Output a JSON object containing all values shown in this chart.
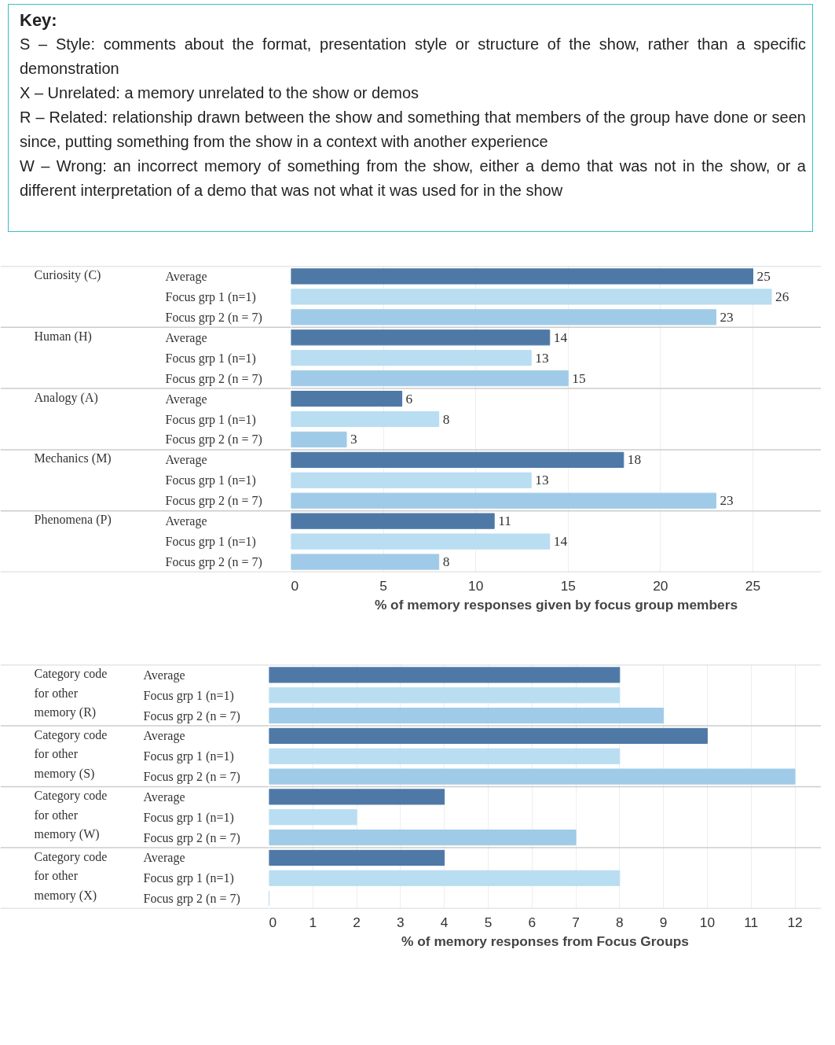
{
  "chart_data": [
    {
      "type": "other",
      "title": "Key:",
      "annotations": [
        "S – Style: comments about the format, presentation style or structure of the show, rather than a specific demonstration",
        "X – Unrelated: a memory unrelated to the show or demos",
        "R – Related: relationship drawn between the show and something that members of the group have done or seen since, putting something from the show in a context with another experience",
        "W – Wrong: an incorrect memory of something from the show, either a demo that was not in the show, or a different interpretation of a demo that was not what it was used for in the show"
      ]
    },
    {
      "type": "bar",
      "orientation": "horizontal",
      "xlabel": "% of memory responses given by focus group members",
      "categories": [
        "Average",
        "Focus grp 1 (n=1)",
        "Focus grp 2 (n = 7)",
        "Average",
        "Focus grp 1 (n=1)",
        "Focus grp 2 (n = 7)",
        "Average",
        "Focus grp 1 (n=1)",
        "Focus grp 2 (n = 7)",
        "Average",
        "Focus grp 1 (n=1)",
        "Focus grp 2 (n = 7)",
        "Average",
        "Focus grp 1 (n=1)",
        "Focus grp 2 (n = 7)"
      ],
      "annotations": [
        "Curiosity (C)",
        "Human (H)",
        "Analogy (A)",
        "Mechanics (M)",
        "Phenomena (P)"
      ],
      "values": [
        25,
        26,
        23,
        14,
        13,
        15,
        6,
        8,
        3,
        18,
        13,
        23,
        11,
        14,
        8
      ],
      "colors": [
        "#4e79a7",
        "#b9ddf1",
        "#a0cbe8",
        "#4e79a7",
        "#b9ddf1",
        "#a0cbe8",
        "#4e79a7",
        "#b9ddf1",
        "#a0cbe8",
        "#4e79a7",
        "#b9ddf1",
        "#a0cbe8",
        "#4e79a7",
        "#b9ddf1",
        "#a0cbe8"
      ],
      "xlim": [
        0,
        28.7
      ],
      "xticks": [
        0,
        5,
        10,
        15,
        20,
        25
      ],
      "grid": "x",
      "data_labels": true
    },
    {
      "type": "bar",
      "orientation": "horizontal",
      "xlabel": "% of memory responses from Focus Groups",
      "categories": [
        "Average",
        "Focus grp 1 (n=1)",
        "Focus grp 2 (n = 7)",
        "Average",
        "Focus grp 1 (n=1)",
        "Focus grp 2 (n = 7)",
        "Average",
        "Focus grp 1 (n=1)",
        "Focus grp 2 (n = 7)",
        "Average",
        "Focus grp 1 (n=1)",
        "Focus grp 2 (n = 7)"
      ],
      "annotations": [
        "Category code for other memory (R)",
        "Category code for other memory (S)",
        "Category code for other memory (W)",
        "Category code for other memory (X)"
      ],
      "values": [
        8,
        8,
        9,
        10,
        8,
        12,
        4,
        2,
        7,
        4,
        8,
        0
      ],
      "colors": [
        "#4e79a7",
        "#b9ddf1",
        "#a0cbe8",
        "#4e79a7",
        "#b9ddf1",
        "#a0cbe8",
        "#4e79a7",
        "#b9ddf1",
        "#a0cbe8",
        "#4e79a7",
        "#b9ddf1",
        "#a0cbe8"
      ],
      "xlim": [
        0,
        12.6
      ],
      "xticks": [
        0,
        1,
        2,
        3,
        4,
        5,
        6,
        7,
        8,
        9,
        10,
        11,
        12
      ],
      "grid": "x"
    }
  ]
}
